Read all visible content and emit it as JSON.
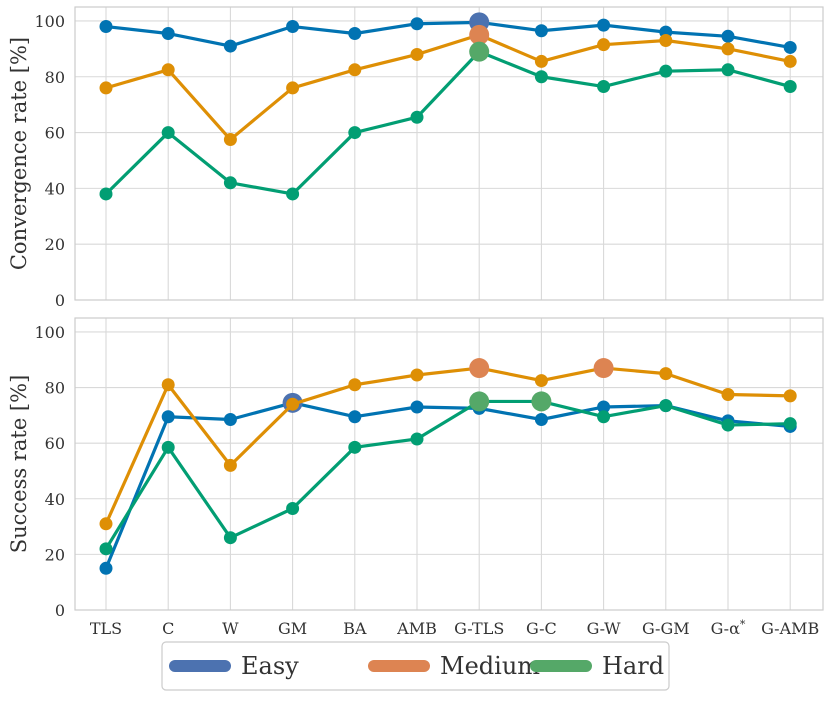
{
  "chart_data": [
    {
      "type": "line",
      "ylabel": "Convergence rate [%]",
      "ylim": [
        0,
        105
      ],
      "yticks": [
        0,
        20,
        40,
        60,
        80,
        100
      ],
      "grid": true,
      "categories": [
        "TLS",
        "C",
        "W",
        "GM",
        "BA",
        "AMB",
        "G-TLS",
        "G-C",
        "G-W",
        "G-GM",
        "G-α*",
        "G-AMB"
      ],
      "series": [
        {
          "name": "Easy",
          "color": "#0173b2",
          "highlight_color": "#4c72b0",
          "values": [
            98,
            95.5,
            91,
            98,
            95.5,
            99,
            99.5,
            96.5,
            98.5,
            96,
            94.5,
            90.5
          ],
          "highlight": [
            6
          ]
        },
        {
          "name": "Medium",
          "color": "#de8f05",
          "highlight_color": "#dd8452",
          "values": [
            76,
            82.5,
            57.5,
            76,
            82.5,
            88,
            95,
            85.5,
            91.5,
            93,
            90,
            85.5
          ],
          "highlight": [
            6
          ]
        },
        {
          "name": "Hard",
          "color": "#029e73",
          "highlight_color": "#55a868",
          "values": [
            38,
            60,
            42,
            38,
            60,
            65.5,
            89,
            80,
            76.5,
            82,
            82.5,
            76.5
          ],
          "highlight": [
            6
          ]
        }
      ]
    },
    {
      "type": "line",
      "ylabel": "Success rate [%]",
      "ylim": [
        0,
        105
      ],
      "yticks": [
        0,
        20,
        40,
        60,
        80,
        100
      ],
      "grid": true,
      "categories": [
        "TLS",
        "C",
        "W",
        "GM",
        "BA",
        "AMB",
        "G-TLS",
        "G-C",
        "G-W",
        "G-GM",
        "G-α*",
        "G-AMB"
      ],
      "series": [
        {
          "name": "Easy",
          "color": "#0173b2",
          "highlight_color": "#4c72b0",
          "values": [
            15,
            69.5,
            68.5,
            74.5,
            69.5,
            73,
            72.5,
            68.5,
            73,
            73.5,
            68,
            66
          ],
          "highlight": [
            3
          ]
        },
        {
          "name": "Medium",
          "color": "#de8f05",
          "highlight_color": "#dd8452",
          "values": [
            31,
            81,
            52,
            74,
            81,
            84.5,
            87,
            82.5,
            87,
            85,
            77.5,
            77
          ],
          "highlight": [
            6,
            8
          ]
        },
        {
          "name": "Hard",
          "color": "#029e73",
          "highlight_color": "#55a868",
          "values": [
            22,
            58.5,
            26,
            36.5,
            58.5,
            61.5,
            75,
            75,
            69.5,
            73.5,
            66.5,
            67
          ],
          "highlight": [
            6,
            7
          ]
        }
      ]
    }
  ],
  "legend": {
    "position": "bottom-center",
    "entries": [
      {
        "label": "Easy",
        "color": "#4c72b0"
      },
      {
        "label": "Medium",
        "color": "#dd8452"
      },
      {
        "label": "Hard",
        "color": "#55a868"
      }
    ]
  }
}
